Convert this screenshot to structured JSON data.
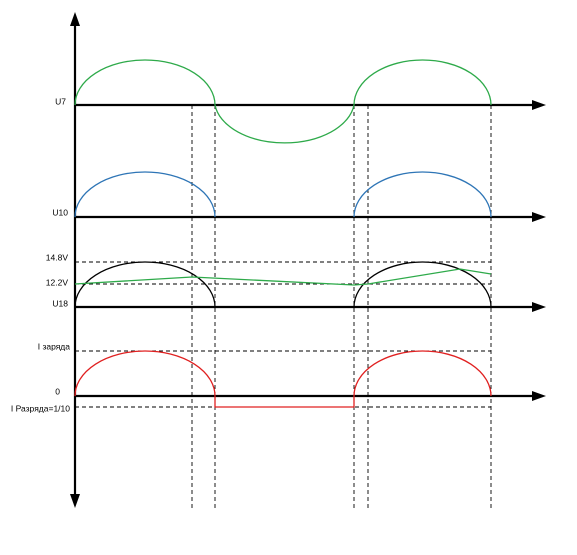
{
  "labels": {
    "u7": "U7",
    "u10": "U10",
    "v14_8": "14.8V",
    "v12_2": "12.2V",
    "u18": "U18",
    "i_charge": "I заряда",
    "zero": "0",
    "i_discharge": "I Разряда=1/10"
  }
}
